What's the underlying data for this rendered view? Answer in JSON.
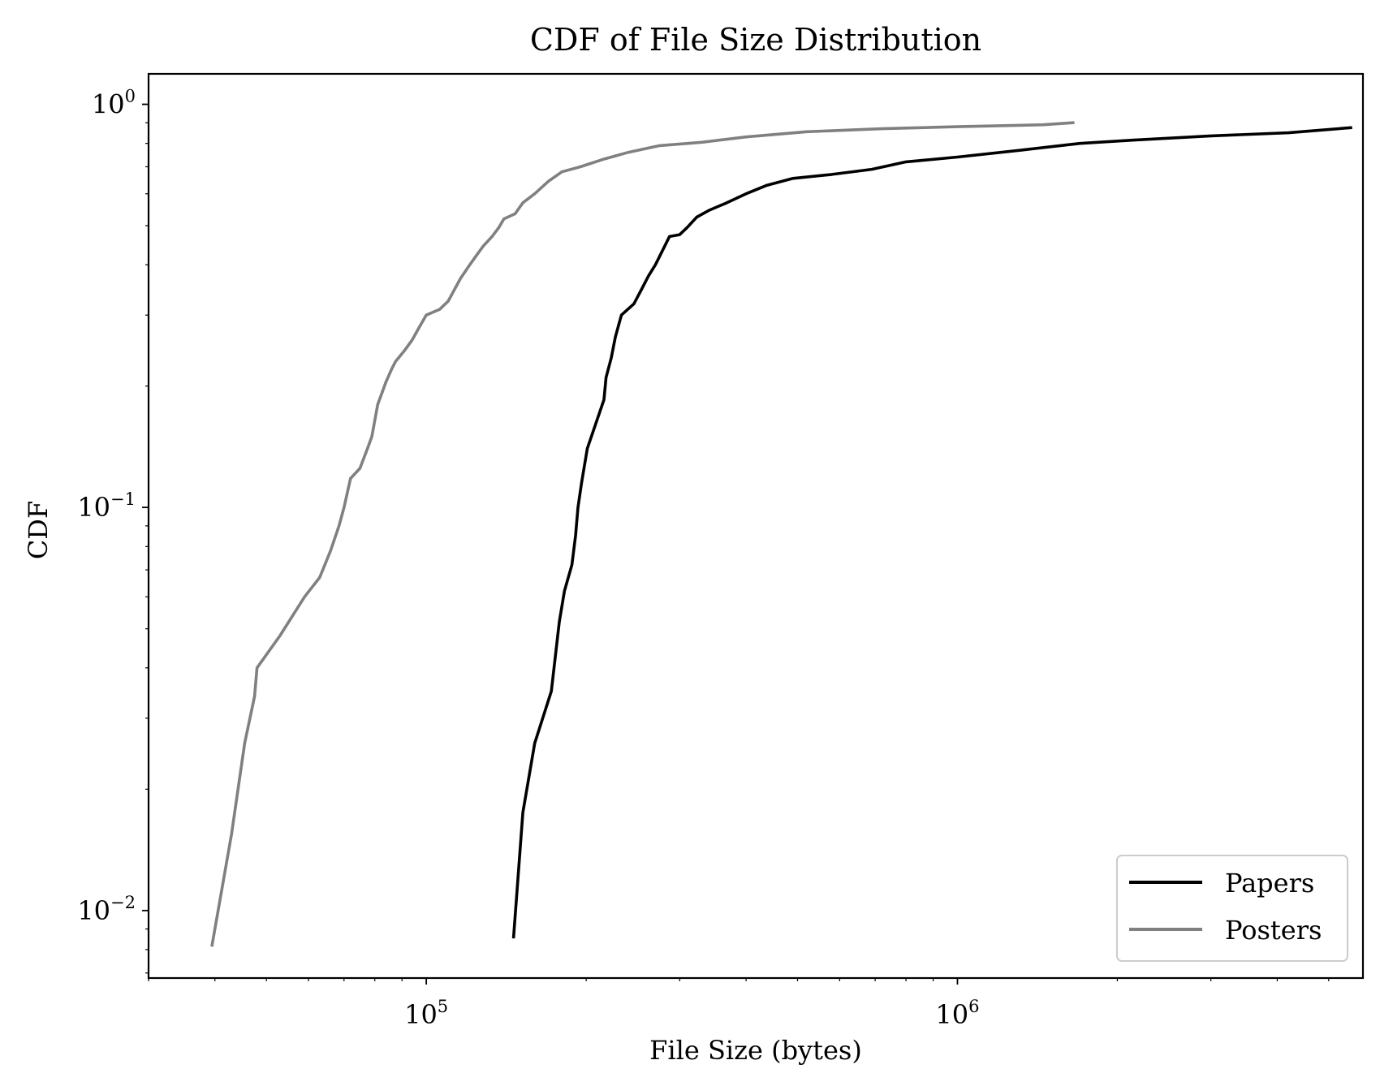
{
  "chart_data": {
    "type": "line",
    "title": "CDF of File Size Distribution",
    "xlabel": "File Size (bytes)",
    "ylabel": "CDF",
    "xscale": "log",
    "yscale": "log",
    "xlim": [
      30000,
      5800000
    ],
    "ylim": [
      0.0068,
      1.19
    ],
    "grid": false,
    "legend_position": "lower-right",
    "x_ticks": [
      {
        "value": 100000,
        "base": "10",
        "exp": "5"
      },
      {
        "value": 1000000,
        "base": "10",
        "exp": "6"
      }
    ],
    "y_ticks": [
      {
        "value": 0.01,
        "base": "10",
        "exp": "−2"
      },
      {
        "value": 0.1,
        "base": "10",
        "exp": "−1"
      },
      {
        "value": 1,
        "base": "10",
        "exp": "0"
      }
    ],
    "series": [
      {
        "name": "Papers",
        "color": "#000000",
        "points": [
          [
            146000,
            0.0086
          ],
          [
            152000,
            0.0175
          ],
          [
            160000,
            0.026
          ],
          [
            172000,
            0.035
          ],
          [
            178000,
            0.052
          ],
          [
            182000,
            0.062
          ],
          [
            188000,
            0.072
          ],
          [
            191000,
            0.085
          ],
          [
            193000,
            0.1
          ],
          [
            196000,
            0.115
          ],
          [
            201000,
            0.14
          ],
          [
            208000,
            0.16
          ],
          [
            216000,
            0.185
          ],
          [
            218000,
            0.21
          ],
          [
            223000,
            0.235
          ],
          [
            227000,
            0.265
          ],
          [
            233000,
            0.3
          ],
          [
            246000,
            0.32
          ],
          [
            255000,
            0.35
          ],
          [
            262000,
            0.375
          ],
          [
            270000,
            0.4
          ],
          [
            280000,
            0.44
          ],
          [
            287000,
            0.47
          ],
          [
            300000,
            0.475
          ],
          [
            310000,
            0.495
          ],
          [
            323000,
            0.525
          ],
          [
            340000,
            0.545
          ],
          [
            368000,
            0.57
          ],
          [
            400000,
            0.6
          ],
          [
            438000,
            0.63
          ],
          [
            490000,
            0.655
          ],
          [
            580000,
            0.67
          ],
          [
            690000,
            0.69
          ],
          [
            800000,
            0.72
          ],
          [
            1000000,
            0.74
          ],
          [
            1320000,
            0.77
          ],
          [
            1700000,
            0.8
          ],
          [
            2150000,
            0.815
          ],
          [
            3000000,
            0.835
          ],
          [
            4200000,
            0.85
          ],
          [
            5500000,
            0.875
          ]
        ]
      },
      {
        "name": "Posters",
        "color": "#808080",
        "points": [
          [
            39500,
            0.0082
          ],
          [
            43000,
            0.0155
          ],
          [
            45500,
            0.026
          ],
          [
            47500,
            0.034
          ],
          [
            48000,
            0.04
          ],
          [
            53000,
            0.048
          ],
          [
            59000,
            0.06
          ],
          [
            63000,
            0.067
          ],
          [
            66000,
            0.078
          ],
          [
            68500,
            0.09
          ],
          [
            70000,
            0.1
          ],
          [
            72000,
            0.118
          ],
          [
            75000,
            0.125
          ],
          [
            77500,
            0.14
          ],
          [
            79000,
            0.15
          ],
          [
            81000,
            0.18
          ],
          [
            84000,
            0.205
          ],
          [
            86000,
            0.22
          ],
          [
            87500,
            0.23
          ],
          [
            91000,
            0.245
          ],
          [
            94000,
            0.26
          ],
          [
            97000,
            0.28
          ],
          [
            100000,
            0.3
          ],
          [
            106000,
            0.31
          ],
          [
            110000,
            0.325
          ],
          [
            116000,
            0.37
          ],
          [
            120000,
            0.395
          ],
          [
            124000,
            0.42
          ],
          [
            128000,
            0.445
          ],
          [
            133000,
            0.47
          ],
          [
            137000,
            0.495
          ],
          [
            140000,
            0.52
          ],
          [
            147000,
            0.535
          ],
          [
            152000,
            0.57
          ],
          [
            160000,
            0.6
          ],
          [
            170000,
            0.645
          ],
          [
            180000,
            0.68
          ],
          [
            195000,
            0.7
          ],
          [
            215000,
            0.73
          ],
          [
            240000,
            0.76
          ],
          [
            275000,
            0.79
          ],
          [
            330000,
            0.805
          ],
          [
            400000,
            0.83
          ],
          [
            520000,
            0.855
          ],
          [
            720000,
            0.87
          ],
          [
            1000000,
            0.88
          ],
          [
            1450000,
            0.89
          ],
          [
            1650000,
            0.9
          ]
        ]
      }
    ]
  }
}
